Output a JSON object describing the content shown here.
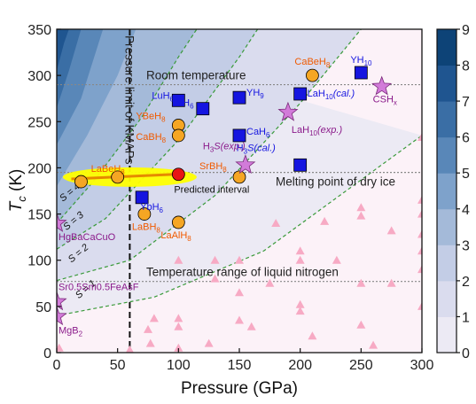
{
  "chart_data": {
    "type": "scatter",
    "xlabel": "Pressure (GPa)",
    "ylabel_main": "T",
    "ylabel_sub": "c",
    "ylabel_unit": " (K)",
    "xlim": [
      0,
      300
    ],
    "ylim": [
      0,
      350
    ],
    "xticks": [
      "0",
      "50",
      "100",
      "150",
      "200",
      "250",
      "300"
    ],
    "yticks": [
      "0",
      "50",
      "100",
      "150",
      "200",
      "250",
      "300",
      "350"
    ],
    "colorbar": {
      "ticks": [
        "0",
        "1",
        "2",
        "3",
        "4",
        "5",
        "6",
        "7",
        "8",
        "9"
      ],
      "colors": [
        "#fcf2f8",
        "#eceaf4",
        "#dadcee",
        "#c3cde6",
        "#a4bad9",
        "#7ea2cb",
        "#5987b8",
        "#3a6ea5",
        "#1f5590",
        "#0d4377"
      ]
    },
    "reference_lines": [
      {
        "label": "Room temperature",
        "y": 290
      },
      {
        "label": "Melting point of dry ice",
        "y": 195
      },
      {
        "label": "Temperature range of liquid nitrogen",
        "y": 77
      }
    ],
    "kmaps_line": {
      "x": 60,
      "label": "Pressure limit of KMAPs"
    },
    "predicted_interval": {
      "label": "Predicted interval",
      "x_range": [
        5,
        115
      ],
      "y_range": [
        180,
        200
      ]
    },
    "contour_labels": [
      {
        "text": "S = 1",
        "x": 18,
        "y": 58
      },
      {
        "text": "S = 2",
        "x": 12,
        "y": 97
      },
      {
        "text": "S = 3",
        "x": 8,
        "y": 132
      },
      {
        "text": "S = 4",
        "x": 5,
        "y": 163
      }
    ],
    "series": [
      {
        "name": "blue squares",
        "marker": "square",
        "color": "#1515e0",
        "points": [
          {
            "x": 100,
            "y": 273,
            "label": "LuH",
            "sub": "6"
          },
          {
            "x": 120,
            "y": 264,
            "label": "YH",
            "sub": "6"
          },
          {
            "x": 150,
            "y": 276,
            "label": "YH",
            "sub": "9"
          },
          {
            "x": 150,
            "y": 235,
            "label": "CaH",
            "sub": "6"
          },
          {
            "x": 250,
            "y": 303,
            "label": "YH",
            "sub": "10"
          },
          {
            "x": 200,
            "y": 280,
            "label": "LaH",
            "sub": "10",
            "suffix": "(cal.)"
          },
          {
            "x": 200,
            "y": 203,
            "label": "H",
            "sub": "3",
            "suffix": "S(cal.)"
          },
          {
            "x": 70,
            "y": 168,
            "label": "YbH",
            "sub": "6"
          }
        ]
      },
      {
        "name": "orange circles",
        "marker": "circle",
        "color": "#f5a623",
        "points": [
          {
            "x": 210,
            "y": 300,
            "label": "CaBeH",
            "sub": "8"
          },
          {
            "x": 100,
            "y": 246,
            "label": "YBeH",
            "sub": "8"
          },
          {
            "x": 100,
            "y": 235,
            "label": "CaBH",
            "sub": "8"
          },
          {
            "x": 150,
            "y": 190,
            "label": "SrBH",
            "sub": "8"
          },
          {
            "x": 50,
            "y": 190,
            "label": "LaBeH",
            "sub": "8"
          },
          {
            "x": 20,
            "y": 185,
            "label": ""
          },
          {
            "x": 72,
            "y": 150,
            "label": "LaBH",
            "sub": "8"
          },
          {
            "x": 100,
            "y": 141,
            "label": "LaAlH",
            "sub": "8"
          }
        ]
      },
      {
        "name": "violet stars",
        "marker": "star",
        "color": "#d27bd9",
        "points": [
          {
            "x": 267,
            "y": 288,
            "label": "CSH",
            "sub": "x"
          },
          {
            "x": 190,
            "y": 260,
            "label": "LaH",
            "sub": "10",
            "suffix": "(exp.)"
          },
          {
            "x": 155,
            "y": 203,
            "label": "H",
            "sub": "3",
            "suffix": "S(exp.)"
          },
          {
            "x": 0,
            "y": 140,
            "label": "HgBaCaCuO"
          },
          {
            "x": 0,
            "y": 55,
            "label": "Sr0.5Sm0.5FeAsF"
          },
          {
            "x": 0,
            "y": 39,
            "label": "MgB",
            "sub": "2"
          }
        ]
      },
      {
        "name": "predicted",
        "marker": "circle",
        "color": "#e81414",
        "points": [
          {
            "x": 100,
            "y": 193,
            "label": ""
          }
        ]
      },
      {
        "name": "pink triangles",
        "marker": "triangle",
        "color": "#f7aac4",
        "points": [
          {
            "x": 2,
            "y": 5
          },
          {
            "x": 60,
            "y": 3
          },
          {
            "x": 75,
            "y": 25
          },
          {
            "x": 77,
            "y": 10
          },
          {
            "x": 80,
            "y": 37
          },
          {
            "x": 100,
            "y": 37
          },
          {
            "x": 100,
            "y": 28
          },
          {
            "x": 100,
            "y": 5
          },
          {
            "x": 100,
            "y": 100
          },
          {
            "x": 125,
            "y": 10
          },
          {
            "x": 130,
            "y": 80
          },
          {
            "x": 130,
            "y": 100
          },
          {
            "x": 150,
            "y": 35
          },
          {
            "x": 150,
            "y": 65
          },
          {
            "x": 150,
            "y": 100
          },
          {
            "x": 160,
            "y": 28
          },
          {
            "x": 175,
            "y": 75
          },
          {
            "x": 180,
            "y": 140
          },
          {
            "x": 200,
            "y": 45
          },
          {
            "x": 200,
            "y": 52
          },
          {
            "x": 200,
            "y": 100
          },
          {
            "x": 200,
            "y": 110
          },
          {
            "x": 210,
            "y": 18
          },
          {
            "x": 220,
            "y": 142
          },
          {
            "x": 230,
            "y": 100
          },
          {
            "x": 250,
            "y": 30
          },
          {
            "x": 250,
            "y": 75
          },
          {
            "x": 250,
            "y": 148
          },
          {
            "x": 250,
            "y": 157
          },
          {
            "x": 260,
            "y": 8
          },
          {
            "x": 275,
            "y": 75
          },
          {
            "x": 275,
            "y": 132
          },
          {
            "x": 300,
            "y": 50
          },
          {
            "x": 300,
            "y": 90
          },
          {
            "x": 300,
            "y": 110
          },
          {
            "x": 300,
            "y": 128
          },
          {
            "x": 300,
            "y": 150
          },
          {
            "x": 300,
            "y": 165
          },
          {
            "x": 300,
            "y": 233
          }
        ]
      }
    ]
  }
}
